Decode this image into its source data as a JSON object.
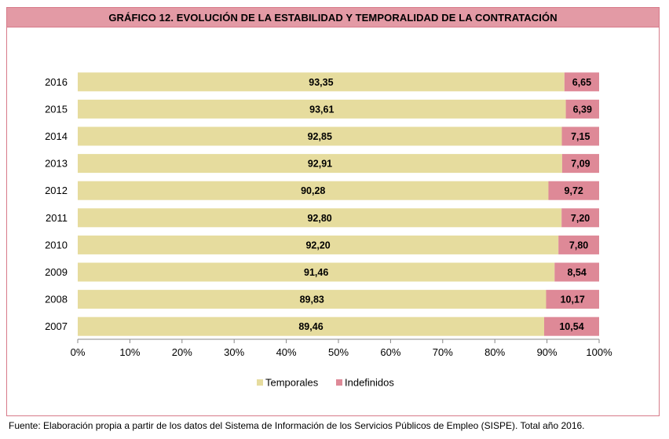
{
  "header": {
    "title": "GRÁFICO 12. EVOLUCIÓN DE LA ESTABILIDAD Y TEMPORALIDAD DE LA CONTRATACIÓN"
  },
  "footer": {
    "source": "Fuente: Elaboración propia a partir de los datos del Sistema de Información de los Servicios Públicos de Empleo (SISPE). Total año 2016."
  },
  "colors": {
    "temporales": "#e6dc9e",
    "indefinidos": "#de8997",
    "title_bg": "#e39aa5",
    "frame": "#d77b8a"
  },
  "chart_data": {
    "type": "bar",
    "orientation": "horizontal",
    "stacked": "percent",
    "title": "GRÁFICO 12. EVOLUCIÓN DE LA ESTABILIDAD Y TEMPORALIDAD DE LA CONTRATACIÓN",
    "categories": [
      "2016",
      "2015",
      "2014",
      "2013",
      "2012",
      "2011",
      "2010",
      "2009",
      "2008",
      "2007"
    ],
    "series": [
      {
        "name": "Temporales",
        "values": [
          93.35,
          93.61,
          92.85,
          92.91,
          90.28,
          92.8,
          92.2,
          91.46,
          89.83,
          89.46
        ],
        "labels": [
          "93,35",
          "93,61",
          "92,85",
          "92,91",
          "90,28",
          "92,80",
          "92,20",
          "91,46",
          "89,83",
          "89,46"
        ]
      },
      {
        "name": "Indefinidos",
        "values": [
          6.65,
          6.39,
          7.15,
          7.09,
          9.72,
          7.2,
          7.8,
          8.54,
          10.17,
          10.54
        ],
        "labels": [
          "6,65",
          "6,39",
          "7,15",
          "7,09",
          "9,72",
          "7,20",
          "7,80",
          "8,54",
          "10,17",
          "10,54"
        ]
      }
    ],
    "xlim": [
      0,
      100
    ],
    "xticks": [
      "0%",
      "10%",
      "20%",
      "30%",
      "40%",
      "50%",
      "60%",
      "70%",
      "80%",
      "90%",
      "100%"
    ],
    "grid": false,
    "legend": "bottom"
  }
}
